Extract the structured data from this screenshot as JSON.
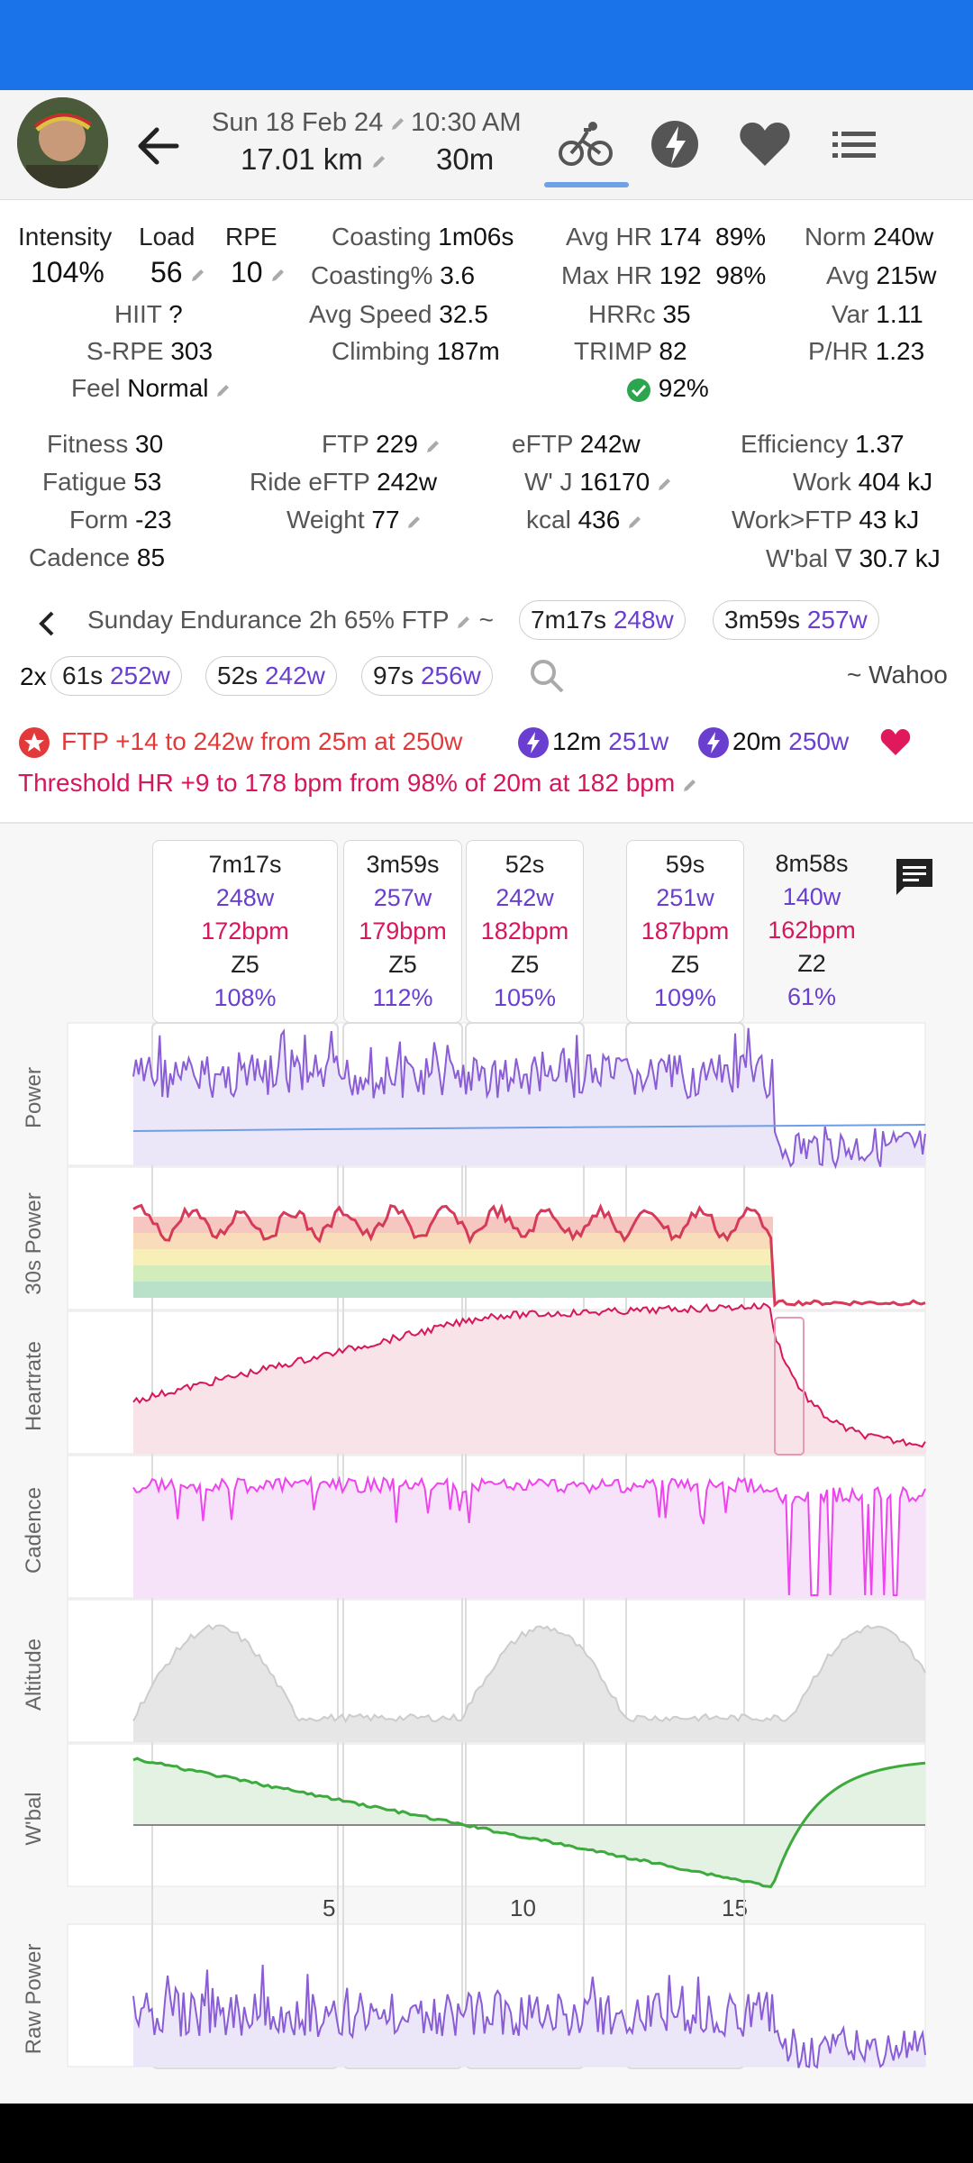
{
  "header": {
    "date": "Sun 18 Feb 24",
    "time": "10:30 AM",
    "distance": "17.01 km",
    "duration": "30m",
    "icons": [
      "back-arrow-icon",
      "bike-icon",
      "lightning-icon",
      "heart-icon",
      "list-icon"
    ]
  },
  "stats": {
    "intensity_label": "Intensity",
    "intensity": "104%",
    "load_label": "Load",
    "load": "56",
    "rpe_label": "RPE",
    "rpe": "10",
    "hiit_label": "HIIT",
    "hiit": "?",
    "srpe_label": "S-RPE",
    "srpe": "303",
    "feel_label": "Feel",
    "feel": "Normal",
    "coasting_label": "Coasting",
    "coasting": "1m06s",
    "coasting_pct_label": "Coasting%",
    "coasting_pct": "3.6",
    "avg_speed_label": "Avg Speed",
    "avg_speed": "32.5",
    "climbing_label": "Climbing",
    "climbing": "187m",
    "avg_hr_label": "Avg HR",
    "avg_hr": "174",
    "avg_hr_pct": "89%",
    "max_hr_label": "Max HR",
    "max_hr": "192",
    "max_hr_pct": "98%",
    "hrrc_label": "HRRc",
    "hrrc": "35",
    "trimp_label": "TRIMP",
    "trimp": "82",
    "check_pct": "92%",
    "norm_label": "Norm",
    "norm": "240w",
    "avg_label": "Avg",
    "avg": "215w",
    "var_label": "Var",
    "var": "1.11",
    "phr_label": "P/HR",
    "phr": "1.23",
    "fitness_label": "Fitness",
    "fitness": "30",
    "fatigue_label": "Fatigue",
    "fatigue": "53",
    "form_label": "Form",
    "form": "-23",
    "cadence_label": "Cadence",
    "cadence": "85",
    "ftp_label": "FTP",
    "ftp": "229",
    "ride_eftp_label": "Ride eFTP",
    "ride_eftp": "242w",
    "weight_label": "Weight",
    "weight": "77",
    "eftp_label": "eFTP",
    "eftp": "242w",
    "wj_label": "W' J",
    "wj": "16170",
    "kcal_label": "kcal",
    "kcal": "436",
    "efficiency_label": "Efficiency",
    "efficiency": "1.37",
    "work_label": "Work",
    "work": "404 kJ",
    "work_ftp_label": "Work>FTP",
    "work_ftp": "43 kJ",
    "wbal_label": "W'bal ∇",
    "wbal": "30.7 kJ"
  },
  "workout": {
    "name": "Sunday Endurance 2h 65% FTP",
    "tilde": "~",
    "pills": [
      {
        "t": "7m17s",
        "w": "248w"
      },
      {
        "t": "3m59s",
        "w": "257w"
      }
    ],
    "repeat": "2x",
    "pills2": [
      {
        "t": "61s",
        "w": "252w"
      },
      {
        "t": "52s",
        "w": "242w"
      },
      {
        "t": "97s",
        "w": "256w"
      }
    ],
    "device": "~ Wahoo"
  },
  "achievements": {
    "ftp_text": "FTP +14 to 242w from 25m at 250w",
    "pr1_time": "12m",
    "pr1_w": "251w",
    "pr2_time": "20m",
    "pr2_w": "250w",
    "threshold_text": "Threshold HR +9 to 178 bpm from 98% of 20m at 182 bpm"
  },
  "intervals": [
    {
      "dur": "7m17s",
      "w": "248w",
      "bpm": "172bpm",
      "zone": "Z5",
      "pct": "108%"
    },
    {
      "dur": "3m59s",
      "w": "257w",
      "bpm": "179bpm",
      "zone": "Z5",
      "pct": "112%"
    },
    {
      "dur": "52s",
      "w": "242w",
      "bpm": "182bpm",
      "zone": "Z5",
      "pct": "105%"
    },
    {
      "dur": "59s",
      "w": "251w",
      "bpm": "187bpm",
      "zone": "Z5",
      "pct": "109%"
    },
    {
      "dur": "8m58s",
      "w": "140w",
      "bpm": "162bpm",
      "zone": "Z2",
      "pct": "61%"
    }
  ],
  "charts": {
    "power": {
      "label": "Power",
      "max": "460",
      "min": "0"
    },
    "power30": {
      "label": "30s Power",
      "max": "301",
      "min": "0"
    },
    "hr": {
      "label": "Heartrate",
      "max": "192",
      "min": "134"
    },
    "cadence": {
      "label": "Cadence",
      "max": "104",
      "min": "0"
    },
    "altitude": {
      "label": "Altitude",
      "max": "51",
      "min": "35"
    },
    "wbal": {
      "label": "W'bal",
      "max": "16.2",
      "min": "-14.6"
    },
    "raw": {
      "label": "Raw Power",
      "max": "460",
      "min": "0"
    },
    "xticks": [
      "5",
      "10",
      "15"
    ]
  },
  "colors": {
    "accent": "#1a73e8",
    "power": "#8a5cd6",
    "hr": "#d6175c",
    "cadence": "#ee44ee",
    "wbal": "#3daa3d",
    "altitude": "#bbbbbb"
  }
}
